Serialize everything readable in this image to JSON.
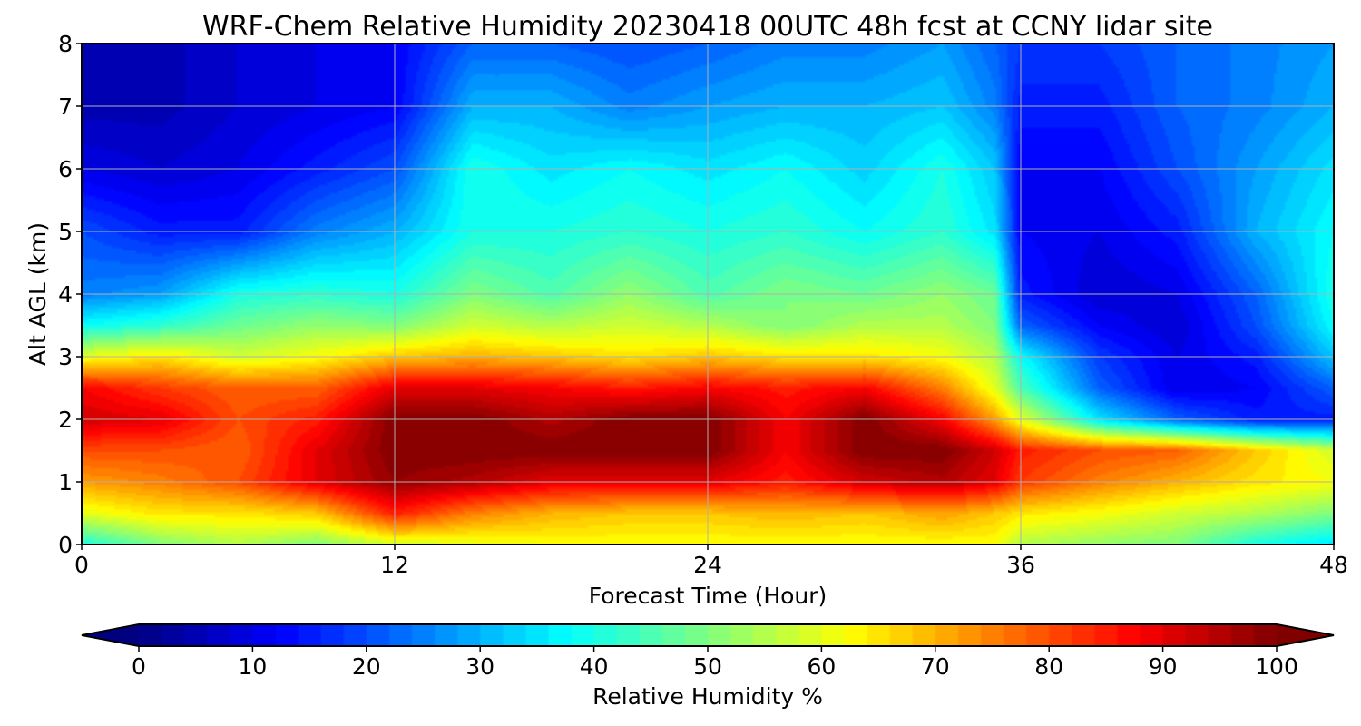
{
  "chart_data": {
    "type": "heatmap",
    "title": "WRF-Chem Relative Humidity 20230418 00UTC 48h fcst at CCNY lidar site",
    "xlabel": "Forecast Time (Hour)",
    "ylabel": "Alt AGL (km)",
    "xlim": [
      0,
      48
    ],
    "ylim": [
      0,
      8
    ],
    "xticks": [
      0,
      12,
      24,
      36,
      48
    ],
    "yticks": [
      0,
      1,
      2,
      3,
      4,
      5,
      6,
      7,
      8
    ],
    "grid": true,
    "colormap": "jet",
    "colorbar": {
      "label": "Relative Humidity %",
      "min": 0,
      "max": 100,
      "ticks": [
        0,
        10,
        20,
        30,
        40,
        50,
        60,
        70,
        80,
        90,
        100
      ],
      "extend": "both",
      "placement": "bottom"
    },
    "x": [
      0,
      3,
      6,
      9,
      12,
      15,
      18,
      21,
      24,
      27,
      30,
      33,
      35,
      36,
      39,
      42,
      45,
      48
    ],
    "y": [
      0,
      0.5,
      1,
      1.5,
      2,
      2.5,
      3,
      3.5,
      4,
      5,
      6,
      7,
      8
    ],
    "z": [
      [
        40,
        50,
        55,
        50,
        58,
        60,
        62,
        62,
        62,
        62,
        62,
        62,
        62,
        55,
        52,
        50,
        40,
        35
      ],
      [
        60,
        65,
        65,
        68,
        85,
        75,
        70,
        68,
        68,
        70,
        68,
        72,
        68,
        65,
        62,
        58,
        55,
        50
      ],
      [
        72,
        75,
        80,
        90,
        98,
        95,
        90,
        90,
        90,
        85,
        92,
        95,
        90,
        82,
        75,
        70,
        65,
        62
      ],
      [
        80,
        80,
        78,
        90,
        100,
        100,
        100,
        100,
        100,
        88,
        100,
        100,
        92,
        85,
        80,
        78,
        68,
        58
      ],
      [
        92,
        90,
        80,
        85,
        100,
        100,
        95,
        100,
        100,
        88,
        100,
        88,
        72,
        60,
        35,
        22,
        15,
        15
      ],
      [
        88,
        82,
        78,
        78,
        90,
        90,
        88,
        85,
        88,
        85,
        88,
        75,
        60,
        45,
        22,
        10,
        12,
        22
      ],
      [
        60,
        65,
        58,
        62,
        68,
        70,
        68,
        65,
        68,
        65,
        65,
        62,
        55,
        38,
        18,
        10,
        15,
        32
      ],
      [
        38,
        42,
        48,
        52,
        50,
        58,
        55,
        58,
        55,
        50,
        55,
        55,
        50,
        22,
        12,
        8,
        20,
        38
      ],
      [
        25,
        28,
        40,
        42,
        40,
        50,
        45,
        52,
        45,
        50,
        48,
        52,
        48,
        15,
        8,
        10,
        22,
        40
      ],
      [
        20,
        15,
        15,
        25,
        30,
        40,
        40,
        42,
        40,
        42,
        38,
        42,
        35,
        12,
        10,
        15,
        30,
        38
      ],
      [
        10,
        8,
        10,
        15,
        20,
        40,
        35,
        38,
        35,
        38,
        33,
        40,
        32,
        12,
        12,
        20,
        28,
        35
      ],
      [
        5,
        5,
        8,
        10,
        12,
        30,
        30,
        25,
        28,
        30,
        30,
        32,
        25,
        15,
        15,
        22,
        25,
        30
      ],
      [
        5,
        5,
        8,
        10,
        12,
        22,
        22,
        20,
        22,
        25,
        25,
        28,
        22,
        18,
        18,
        22,
        25,
        28
      ]
    ]
  }
}
